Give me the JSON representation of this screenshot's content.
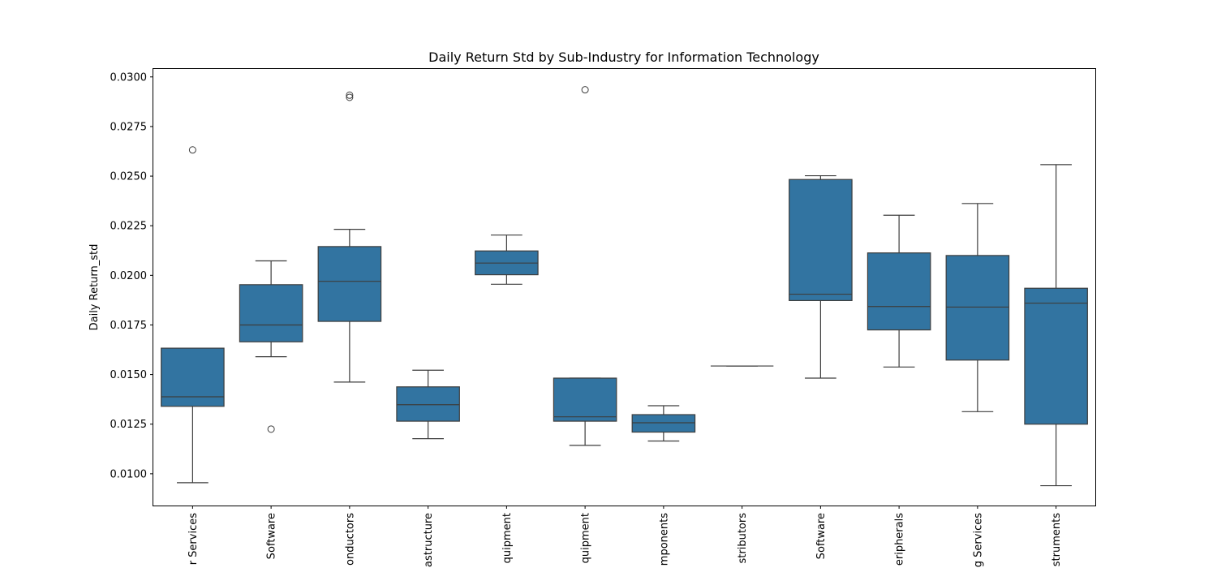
{
  "chart_data": {
    "type": "box",
    "title": "Daily Return Std by Sub-Industry for Information Technology",
    "xlabel": "",
    "ylabel": "Daily Return_std",
    "ylim": [
      0.0084,
      0.0304
    ],
    "yticks": [
      "0.0100",
      "0.0125",
      "0.0150",
      "0.0175",
      "0.0200",
      "0.0225",
      "0.0250",
      "0.0275",
      "0.0300"
    ],
    "ytick_values": [
      0.01,
      0.0125,
      0.015,
      0.0175,
      0.02,
      0.0225,
      0.025,
      0.0275,
      0.03
    ],
    "box_color": "#3274a1",
    "line_color": "#3d3d3d",
    "categories": [
      "r Services",
      "Software",
      "onductors",
      "astructure",
      "quipment",
      "quipment",
      "mponents",
      "stributors",
      "Software",
      "eripherals",
      "g Services",
      "struments"
    ],
    "boxes": [
      {
        "whisker_low": 0.00955,
        "q1": 0.0134,
        "median": 0.01388,
        "q3": 0.01633,
        "whisker_high": 0.01633,
        "outliers": [
          0.02632
        ]
      },
      {
        "whisker_low": 0.0159,
        "q1": 0.01665,
        "median": 0.0175,
        "q3": 0.01953,
        "whisker_high": 0.02073,
        "outliers": [
          0.01225
        ]
      },
      {
        "whisker_low": 0.01462,
        "q1": 0.01768,
        "median": 0.0197,
        "q3": 0.02145,
        "whisker_high": 0.02232,
        "outliers": [
          0.02897,
          0.02908
        ]
      },
      {
        "whisker_low": 0.01177,
        "q1": 0.01265,
        "median": 0.01348,
        "q3": 0.01438,
        "whisker_high": 0.01522,
        "outliers": []
      },
      {
        "whisker_low": 0.01955,
        "q1": 0.02003,
        "median": 0.02062,
        "q3": 0.02123,
        "whisker_high": 0.02203,
        "outliers": []
      },
      {
        "whisker_low": 0.01143,
        "q1": 0.01265,
        "median": 0.01287,
        "q3": 0.01482,
        "whisker_high": 0.01482,
        "outliers": [
          0.02935
        ]
      },
      {
        "whisker_low": 0.01165,
        "q1": 0.0121,
        "median": 0.01257,
        "q3": 0.01298,
        "whisker_high": 0.01343,
        "outliers": []
      },
      {
        "whisker_low": 0.01543,
        "q1": 0.01543,
        "median": 0.01543,
        "q3": 0.01543,
        "whisker_high": 0.01543,
        "outliers": []
      },
      {
        "whisker_low": 0.01482,
        "q1": 0.01873,
        "median": 0.01905,
        "q3": 0.02483,
        "whisker_high": 0.02502,
        "outliers": []
      },
      {
        "whisker_low": 0.01538,
        "q1": 0.01725,
        "median": 0.01843,
        "q3": 0.02113,
        "whisker_high": 0.02303,
        "outliers": []
      },
      {
        "whisker_low": 0.01313,
        "q1": 0.01573,
        "median": 0.0184,
        "q3": 0.021,
        "whisker_high": 0.02362,
        "outliers": []
      },
      {
        "whisker_low": 0.0094,
        "q1": 0.0125,
        "median": 0.0186,
        "q3": 0.01935,
        "whisker_high": 0.02558,
        "outliers": []
      }
    ]
  }
}
